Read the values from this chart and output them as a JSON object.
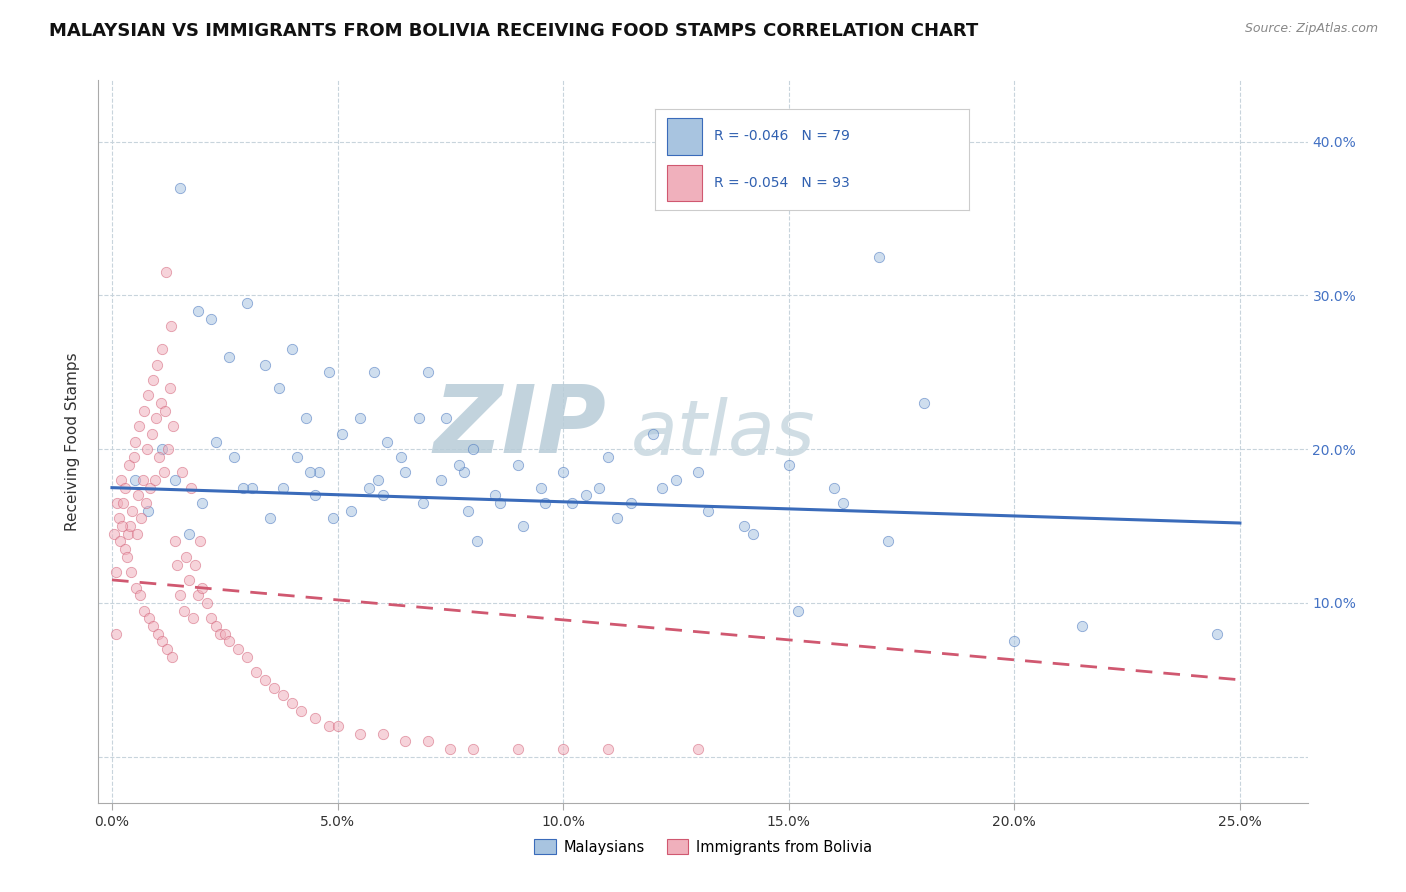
{
  "title": "MALAYSIAN VS IMMIGRANTS FROM BOLIVIA RECEIVING FOOD STAMPS CORRELATION CHART",
  "source_text": "Source: ZipAtlas.com",
  "ylabel": "Receiving Food Stamps",
  "x_tick_labels": [
    "0.0%",
    "5.0%",
    "10.0%",
    "15.0%",
    "20.0%",
    "25.0%"
  ],
  "x_tick_values": [
    0.0,
    5.0,
    10.0,
    15.0,
    20.0,
    25.0
  ],
  "y_tick_labels_right": [
    "10.0%",
    "20.0%",
    "30.0%",
    "40.0%"
  ],
  "y_tick_values_right": [
    10.0,
    20.0,
    30.0,
    40.0
  ],
  "xlim": [
    -0.3,
    26.5
  ],
  "ylim": [
    -3.0,
    44.0
  ],
  "legend_labels_bottom": [
    "Malaysians",
    "Immigrants from Bolivia"
  ],
  "blue_dot_color": "#a8c4e0",
  "pink_dot_color": "#f0b0bc",
  "blue_line_color": "#3a6bba",
  "pink_line_color": "#d05870",
  "watermark_text": "ZIPatlas",
  "watermark_color": "#c8d8e8",
  "background_color": "#ffffff",
  "grid_color": "#c8d4dc",
  "title_fontsize": 13,
  "axis_label_fontsize": 11,
  "tick_fontsize": 10,
  "dot_size": 55,
  "dot_alpha": 0.55,
  "blue_trend_x0": 0.0,
  "blue_trend_y0": 17.5,
  "blue_trend_x1": 25.0,
  "blue_trend_y1": 15.2,
  "pink_trend_x0": 0.0,
  "pink_trend_y0": 11.5,
  "pink_trend_x1": 25.0,
  "pink_trend_y1": 5.0,
  "blue_dots_x": [
    1.5,
    1.9,
    2.2,
    2.6,
    3.0,
    3.4,
    3.7,
    4.0,
    4.3,
    4.6,
    4.8,
    5.1,
    5.5,
    5.8,
    6.0,
    6.4,
    6.8,
    7.0,
    7.4,
    7.8,
    8.0,
    8.5,
    9.0,
    9.5,
    10.0,
    10.5,
    11.0,
    11.5,
    12.0,
    12.5,
    13.0,
    14.0,
    15.0,
    16.0,
    17.0,
    18.0,
    20.0,
    21.5,
    24.5,
    0.5,
    0.8,
    1.1,
    1.4,
    1.7,
    2.0,
    2.3,
    2.7,
    3.1,
    3.5,
    3.8,
    4.1,
    4.5,
    4.9,
    5.3,
    5.7,
    6.1,
    6.5,
    6.9,
    7.3,
    7.7,
    8.1,
    8.6,
    9.1,
    9.6,
    10.2,
    11.2,
    12.2,
    13.2,
    14.2,
    15.2,
    16.2,
    17.2,
    2.9,
    4.4,
    5.9,
    7.9,
    10.8
  ],
  "blue_dots_y": [
    37.0,
    29.0,
    28.5,
    26.0,
    29.5,
    25.5,
    24.0,
    26.5,
    22.0,
    18.5,
    25.0,
    21.0,
    22.0,
    25.0,
    17.0,
    19.5,
    22.0,
    25.0,
    22.0,
    18.5,
    20.0,
    17.0,
    19.0,
    17.5,
    18.5,
    17.0,
    19.5,
    16.5,
    21.0,
    18.0,
    18.5,
    15.0,
    19.0,
    17.5,
    32.5,
    23.0,
    7.5,
    8.5,
    8.0,
    18.0,
    16.0,
    20.0,
    18.0,
    14.5,
    16.5,
    20.5,
    19.5,
    17.5,
    15.5,
    17.5,
    19.5,
    17.0,
    15.5,
    16.0,
    17.5,
    20.5,
    18.5,
    16.5,
    18.0,
    19.0,
    14.0,
    16.5,
    15.0,
    16.5,
    16.5,
    15.5,
    17.5,
    16.0,
    14.5,
    9.5,
    16.5,
    14.0,
    17.5,
    18.5,
    18.0,
    16.0,
    17.5
  ],
  "pink_dots_x": [
    0.05,
    0.08,
    0.1,
    0.12,
    0.15,
    0.18,
    0.2,
    0.25,
    0.28,
    0.3,
    0.35,
    0.38,
    0.4,
    0.45,
    0.48,
    0.5,
    0.55,
    0.58,
    0.6,
    0.65,
    0.68,
    0.7,
    0.75,
    0.78,
    0.8,
    0.85,
    0.88,
    0.9,
    0.95,
    0.98,
    1.0,
    1.05,
    1.08,
    1.1,
    1.15,
    1.18,
    1.2,
    1.25,
    1.28,
    1.3,
    1.35,
    1.4,
    1.45,
    1.5,
    1.55,
    1.6,
    1.65,
    1.7,
    1.75,
    1.8,
    1.85,
    1.9,
    1.95,
    2.0,
    2.1,
    2.2,
    2.3,
    2.4,
    2.5,
    2.6,
    2.8,
    3.0,
    3.2,
    3.4,
    3.6,
    3.8,
    4.0,
    4.2,
    4.5,
    4.8,
    5.0,
    5.5,
    6.0,
    6.5,
    7.0,
    7.5,
    8.0,
    9.0,
    10.0,
    11.0,
    13.0,
    0.22,
    0.33,
    0.43,
    0.53,
    0.62,
    0.72,
    0.82,
    0.92,
    1.02,
    1.12,
    1.22,
    1.32
  ],
  "pink_dots_y": [
    14.5,
    8.0,
    12.0,
    16.5,
    15.5,
    14.0,
    18.0,
    16.5,
    13.5,
    17.5,
    14.5,
    19.0,
    15.0,
    16.0,
    19.5,
    20.5,
    14.5,
    17.0,
    21.5,
    15.5,
    18.0,
    22.5,
    16.5,
    20.0,
    23.5,
    17.5,
    21.0,
    24.5,
    18.0,
    22.0,
    25.5,
    19.5,
    23.0,
    26.5,
    18.5,
    22.5,
    31.5,
    20.0,
    24.0,
    28.0,
    21.5,
    14.0,
    12.5,
    10.5,
    18.5,
    9.5,
    13.0,
    11.5,
    17.5,
    9.0,
    12.5,
    10.5,
    14.0,
    11.0,
    10.0,
    9.0,
    8.5,
    8.0,
    8.0,
    7.5,
    7.0,
    6.5,
    5.5,
    5.0,
    4.5,
    4.0,
    3.5,
    3.0,
    2.5,
    2.0,
    2.0,
    1.5,
    1.5,
    1.0,
    1.0,
    0.5,
    0.5,
    0.5,
    0.5,
    0.5,
    0.5,
    15.0,
    13.0,
    12.0,
    11.0,
    10.5,
    9.5,
    9.0,
    8.5,
    8.0,
    7.5,
    7.0,
    6.5
  ]
}
